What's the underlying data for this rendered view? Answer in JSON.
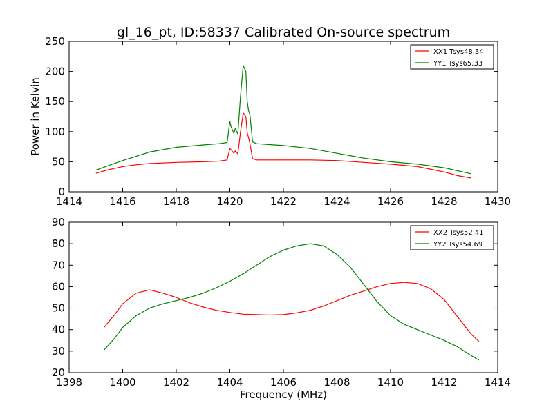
{
  "chart_data": [
    {
      "type": "line",
      "title": "gl_16_pt, ID:58337 Calibrated On-source spectrum",
      "xlabel": "",
      "ylabel": "Power in Kelvin",
      "xlim": [
        1414,
        1430
      ],
      "ylim": [
        0,
        250
      ],
      "xticks": [
        1414,
        1416,
        1418,
        1420,
        1422,
        1424,
        1426,
        1428,
        1430
      ],
      "yticks": [
        0,
        50,
        100,
        150,
        200,
        250
      ],
      "legend_position": "upper right",
      "series": [
        {
          "name": "XX1 Tsys48.34",
          "color": "#ff0000",
          "x": [
            1415,
            1415.5,
            1416,
            1416.5,
            1417,
            1418,
            1419,
            1419.6,
            1419.9,
            1420,
            1420.05,
            1420.15,
            1420.2,
            1420.3,
            1420.4,
            1420.5,
            1420.6,
            1420.65,
            1420.7,
            1420.75,
            1420.85,
            1421,
            1422,
            1423,
            1424,
            1425,
            1426,
            1427,
            1428,
            1428.5,
            1429
          ],
          "y": [
            31,
            37,
            42,
            45,
            47,
            49,
            50,
            51,
            53,
            72,
            70,
            64,
            68,
            63,
            100,
            131,
            125,
            98,
            90,
            80,
            55,
            53,
            53,
            53,
            52,
            49,
            46,
            42,
            33,
            27,
            23
          ]
        },
        {
          "name": "YY1 Tsys65.33",
          "color": "#008000",
          "x": [
            1415,
            1415.5,
            1416,
            1416.5,
            1417,
            1418,
            1419,
            1419.6,
            1419.9,
            1420,
            1420.05,
            1420.15,
            1420.2,
            1420.3,
            1420.4,
            1420.5,
            1420.6,
            1420.65,
            1420.7,
            1420.75,
            1420.85,
            1421,
            1422,
            1423,
            1424,
            1425,
            1426,
            1427,
            1428,
            1428.5,
            1429
          ],
          "y": [
            36,
            44,
            52,
            59,
            66,
            74,
            78,
            80,
            82,
            117,
            108,
            97,
            105,
            96,
            160,
            210,
            200,
            150,
            135,
            128,
            83,
            80,
            77,
            72,
            64,
            56,
            50,
            46,
            40,
            35,
            30
          ]
        }
      ]
    },
    {
      "type": "line",
      "title": "",
      "xlabel": "Frequency (MHz)",
      "ylabel": "",
      "xlim": [
        1398,
        1414
      ],
      "ylim": [
        20,
        90
      ],
      "xticks": [
        1398,
        1400,
        1402,
        1404,
        1406,
        1408,
        1410,
        1412,
        1414
      ],
      "yticks": [
        20,
        30,
        40,
        50,
        60,
        70,
        80,
        90
      ],
      "legend_position": "upper right",
      "series": [
        {
          "name": "XX2 Tsys52.41",
          "color": "#ff0000",
          "x": [
            1399.3,
            1399.7,
            1400,
            1400.5,
            1401,
            1401.5,
            1402,
            1402.5,
            1403,
            1403.5,
            1404,
            1404.5,
            1405,
            1405.5,
            1406,
            1406.5,
            1407,
            1407.5,
            1408,
            1408.5,
            1409,
            1409.5,
            1410,
            1410.5,
            1411,
            1411.5,
            1412,
            1412.5,
            1413,
            1413.3
          ],
          "y": [
            41,
            47,
            52,
            57,
            58.5,
            57,
            55,
            52.5,
            50.5,
            49,
            48,
            47.2,
            47,
            46.8,
            47,
            47.8,
            49,
            51,
            53.5,
            56,
            58,
            60,
            61.5,
            62,
            61.5,
            59,
            54,
            46,
            38,
            34.5
          ]
        },
        {
          "name": "YY2 Tsys54.69",
          "color": "#008000",
          "x": [
            1399.3,
            1399.7,
            1400,
            1400.5,
            1401,
            1401.5,
            1402,
            1402.5,
            1403,
            1403.5,
            1404,
            1404.5,
            1405,
            1405.5,
            1406,
            1406.5,
            1407,
            1407.5,
            1408,
            1408.5,
            1409,
            1409.5,
            1410,
            1410.5,
            1411,
            1411.5,
            1412,
            1412.5,
            1413,
            1413.3
          ],
          "y": [
            30.5,
            36,
            41,
            46.5,
            50,
            52,
            53.5,
            55,
            57,
            59.5,
            62.5,
            66,
            70,
            74,
            77,
            79,
            80,
            79,
            75,
            69,
            61,
            53,
            46.5,
            42.5,
            40,
            37.5,
            35,
            32,
            28,
            25.8
          ]
        }
      ]
    }
  ]
}
